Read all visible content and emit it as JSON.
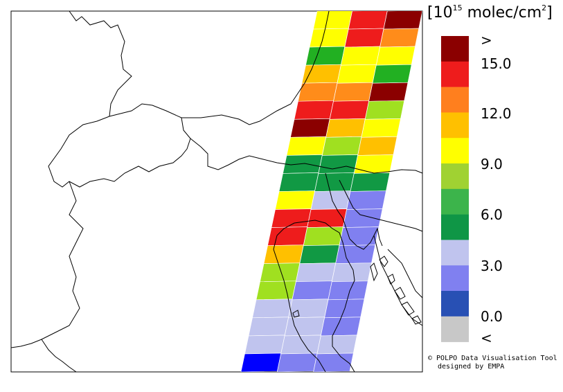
{
  "unit": {
    "bracket_open": "[",
    "base": "10",
    "exponent": "15",
    "rest": " molec/cm",
    "sq": "2",
    "bracket_close": "]"
  },
  "legend": {
    "labels": [
      ">",
      "15.0",
      "12.0",
      "9.0",
      "6.0",
      "3.0",
      "0.0",
      "<"
    ],
    "colors": [
      "#8b0000",
      "#ee1c1c",
      "#ff7f1e",
      "#ffc000",
      "#ffff00",
      "#a0d232",
      "#3cb44b",
      "#0f9646",
      "#c0c4ee",
      "#8080f0",
      "#2850b4",
      "#c8c8c8"
    ]
  },
  "credit": {
    "line1": "© POLPO Data Visualisation Tool",
    "line2": "designed by EMPA"
  },
  "colors": {
    "dark_red": "#8b0000",
    "red": "#ee1c1c",
    "orange": "#ff8c1a",
    "amber": "#ffc000",
    "yellow": "#ffff00",
    "yellow_green": "#a0e020",
    "green": "#22b022",
    "dark_green": "#119944",
    "lavender": "#c0c4ee",
    "periwinkle": "#8080f0",
    "blue": "#0000ff"
  },
  "swath_rows": [
    {
      "cells": [
        "yellow",
        "red",
        "dark_red"
      ]
    },
    {
      "cells": [
        "yellow",
        "red",
        "orange"
      ]
    },
    {
      "cells": [
        "green",
        "yellow",
        "yellow"
      ]
    },
    {
      "cells": [
        "amber",
        "yellow",
        "green"
      ]
    },
    {
      "cells": [
        "orange",
        "orange",
        "dark_red"
      ]
    },
    {
      "cells": [
        "red",
        "red",
        "yellow_green"
      ]
    },
    {
      "cells": [
        "dark_red",
        "amber",
        "yellow"
      ]
    },
    {
      "cells": [
        "yellow",
        "yellow_green",
        "amber"
      ]
    },
    {
      "cells": [
        "dark_green",
        "dark_green",
        "yellow"
      ]
    },
    {
      "cells": [
        "dark_green",
        "dark_green",
        "dark_green"
      ]
    },
    {
      "cells": [
        "yellow",
        "lavender",
        "periwinkle"
      ]
    },
    {
      "cells": [
        "red",
        "red",
        "periwinkle"
      ]
    },
    {
      "cells": [
        "red",
        "yellow_green",
        "periwinkle"
      ]
    },
    {
      "cells": [
        "amber",
        "dark_green",
        "periwinkle"
      ]
    },
    {
      "cells": [
        "yellow_green",
        "lavender",
        "lavender"
      ]
    },
    {
      "cells": [
        "yellow_green",
        "periwinkle",
        "periwinkle"
      ]
    },
    {
      "cells": [
        "lavender",
        "lavender",
        "periwinkle"
      ]
    },
    {
      "cells": [
        "lavender",
        "lavender",
        "periwinkle"
      ]
    },
    {
      "cells": [
        "lavender",
        "lavender",
        "lavender"
      ]
    },
    {
      "cells": [
        "blue",
        "periwinkle",
        "periwinkle"
      ]
    }
  ]
}
